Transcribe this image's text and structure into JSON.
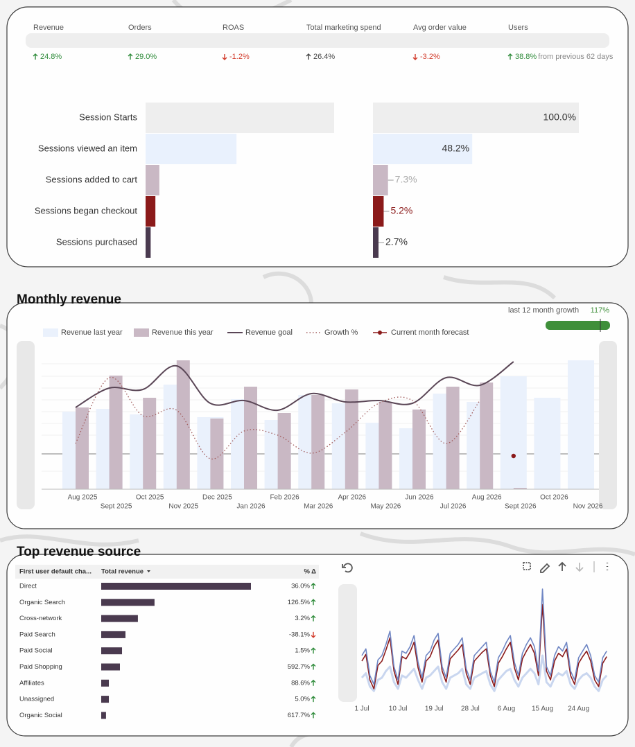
{
  "kpis": [
    {
      "label": "Revenue",
      "change": "24.8%",
      "trend": "up",
      "color": "#2e8b3a"
    },
    {
      "label": "Orders",
      "change": "29.0%",
      "trend": "up",
      "color": "#2e8b3a"
    },
    {
      "label": "ROAS",
      "change": "-1.2%",
      "trend": "down",
      "color": "#d23a2a"
    },
    {
      "label": "Total marketing spend",
      "change": "26.4%",
      "trend": "up",
      "color": "#444444"
    },
    {
      "label": "Avg order value",
      "change": "-3.2%",
      "trend": "down",
      "color": "#d23a2a"
    },
    {
      "label": "Users",
      "change": "38.8%",
      "trend": "up",
      "color": "#2e8b3a"
    }
  ],
  "kpi_note": "from previous 62 days",
  "sections": {
    "monthly": "Monthly revenue",
    "sources": "Top revenue source"
  },
  "growth": {
    "label": "last 12 month growth",
    "value": 117,
    "value_label": "117%",
    "color": "#3f8f3a"
  },
  "chart_data": [
    {
      "type": "funnel",
      "categories": [
        "Session Starts",
        "Sessions viewed an item",
        "Sessions added to cart",
        "Sessions began checkout",
        "Sessions purchased"
      ],
      "values": [
        100.0,
        48.2,
        7.3,
        5.2,
        2.7
      ],
      "value_labels": [
        "100.0%",
        "48.2%",
        "7.3%",
        "5.2%",
        "2.7%"
      ],
      "colors": [
        "#eeeeee",
        "#e9f1fd",
        "#c9b8c4",
        "#8b1a1a",
        "#4a3a4f"
      ],
      "label_colors": [
        "#333333",
        "#333333",
        "#aaaaaa",
        "#8b1a1a",
        "#333333"
      ],
      "xlim": [
        0,
        100
      ]
    },
    {
      "type": "combo",
      "categories": [
        "Aug 2025",
        "Sept 2025",
        "Oct 2025",
        "Nov 2025",
        "Dec 2025",
        "Jan 2026",
        "Feb 2026",
        "Mar 2026",
        "Apr 2026",
        "May 2026",
        "Jun 2026",
        "Jul 2026",
        "Aug 2026",
        "Sept 2026",
        "Oct 2026",
        "Nov 2026"
      ],
      "ylim": [
        0,
        100
      ],
      "series": [
        {
          "name": "Revenue last year",
          "mark": "bar",
          "color": "#eaf1fc",
          "values": [
            56,
            58,
            54,
            75.5,
            52,
            65,
            50,
            68,
            62,
            48,
            44,
            69,
            63,
            81.5,
            66,
            93
          ]
        },
        {
          "name": "Revenue this year",
          "mark": "bar",
          "color": "#c9b8c4",
          "values": [
            59,
            82,
            66,
            93,
            51,
            74,
            55,
            68,
            72,
            63,
            57.5,
            74,
            77,
            1,
            null,
            null
          ]
        },
        {
          "name": "Revenue goal",
          "mark": "line",
          "color": "#5a4656",
          "values": [
            59,
            73,
            72,
            89,
            62,
            64,
            57,
            69,
            63,
            64,
            62,
            80.5,
            75,
            92,
            null,
            null
          ]
        },
        {
          "name": "Growth %",
          "mark": "dotted",
          "color": "#a05a5a",
          "values": [
            33,
            80.5,
            53,
            57,
            22,
            42,
            39,
            26,
            41,
            62,
            64,
            33,
            64,
            null,
            null,
            null
          ]
        },
        {
          "name": "Current month forecast",
          "mark": "point",
          "color": "#8b1a1a",
          "values": [
            null,
            null,
            null,
            null,
            null,
            null,
            null,
            null,
            null,
            null,
            null,
            null,
            null,
            24,
            null,
            null
          ]
        }
      ]
    },
    {
      "type": "line",
      "categories": [
        "1 Jul",
        null,
        null,
        null,
        null,
        null,
        null,
        null,
        null,
        "10 Jul",
        null,
        null,
        null,
        null,
        null,
        null,
        null,
        null,
        "19 Jul",
        null,
        null,
        null,
        null,
        null,
        null,
        null,
        null,
        "28 Jul",
        null,
        null,
        null,
        null,
        null,
        null,
        null,
        null,
        "6 Aug",
        null,
        null,
        null,
        null,
        null,
        null,
        null,
        null,
        "15 Aug",
        null,
        null,
        null,
        null,
        null,
        null,
        null,
        null,
        "24 Aug",
        null,
        null,
        null,
        null,
        null,
        null,
        null
      ],
      "ylim": [
        0,
        100
      ],
      "series": [
        {
          "color": "#c9d6ef",
          "values": [
            20,
            24,
            12,
            8,
            18,
            20,
            26,
            30,
            16,
            10,
            22,
            20,
            24,
            28,
            18,
            10,
            20,
            22,
            26,
            30,
            16,
            10,
            20,
            22,
            24,
            28,
            14,
            10,
            20,
            22,
            24,
            26,
            14,
            8,
            18,
            22,
            26,
            28,
            18,
            12,
            20,
            24,
            28,
            24,
            14,
            40,
            16,
            12,
            20,
            24,
            22,
            26,
            14,
            10,
            18,
            22,
            24,
            20,
            12,
            8,
            18,
            22
          ]
        },
        {
          "color": "#8b1a1a",
          "values": [
            35,
            41,
            18,
            10,
            31,
            35,
            45,
            56,
            26,
            14,
            39,
            37,
            43,
            52,
            29,
            16,
            35,
            39,
            48,
            54,
            26,
            16,
            37,
            41,
            45,
            50,
            24,
            14,
            35,
            39,
            43,
            46,
            22,
            12,
            33,
            39,
            46,
            52,
            29,
            18,
            37,
            44,
            50,
            42,
            22,
            86,
            26,
            18,
            35,
            42,
            39,
            46,
            22,
            14,
            33,
            39,
            44,
            35,
            18,
            12,
            33,
            39
          ]
        },
        {
          "color": "#6f86c4",
          "values": [
            40,
            46,
            22,
            14,
            36,
            40,
            50,
            62,
            30,
            18,
            44,
            42,
            48,
            58,
            34,
            20,
            40,
            44,
            54,
            60,
            30,
            20,
            42,
            46,
            50,
            56,
            28,
            18,
            40,
            44,
            48,
            52,
            26,
            16,
            38,
            44,
            52,
            58,
            34,
            22,
            42,
            50,
            56,
            48,
            26,
            100,
            30,
            22,
            40,
            48,
            44,
            52,
            26,
            18,
            38,
            44,
            50,
            40,
            22,
            16,
            38,
            44
          ]
        }
      ]
    }
  ],
  "table": {
    "headers": [
      "First user default cha...",
      "Total revenue",
      "% Δ"
    ],
    "bar_color": "#4a3a4f",
    "values": [
      100,
      35.6,
      24.5,
      16.2,
      13.9,
      12.5,
      5.1,
      5.1,
      3.2
    ],
    "rows": [
      {
        "channel": "Direct",
        "change": "36.0%",
        "trend": "up"
      },
      {
        "channel": "Organic Search",
        "change": "126.5%",
        "trend": "up"
      },
      {
        "channel": "Cross-network",
        "change": "3.2%",
        "trend": "up"
      },
      {
        "channel": "Paid Search",
        "change": "-38.1%",
        "trend": "down"
      },
      {
        "channel": "Paid Social",
        "change": "1.5%",
        "trend": "up"
      },
      {
        "channel": "Paid Shopping",
        "change": "592.7%",
        "trend": "up"
      },
      {
        "channel": "Affiliates",
        "change": "88.6%",
        "trend": "up"
      },
      {
        "channel": "Unassigned",
        "change": "5.0%",
        "trend": "up"
      },
      {
        "channel": "Organic Social",
        "change": "617.7%",
        "trend": "up"
      }
    ]
  }
}
